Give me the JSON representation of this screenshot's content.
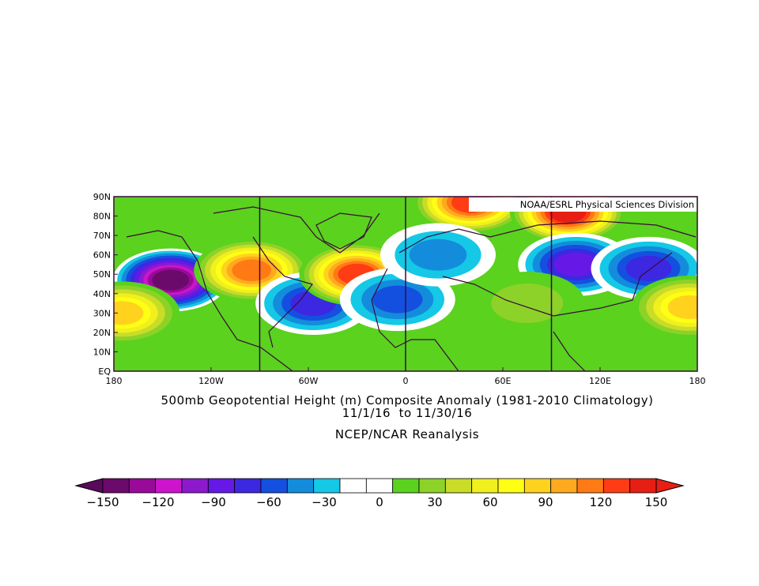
{
  "map": {
    "type": "geopotential height anomaly map",
    "projection": "cylindrical equidistant",
    "lon_range": [
      -180,
      180
    ],
    "lat_range": [
      0,
      90
    ],
    "credit": "NOAA/ESRL Physical Sciences Division",
    "lat_ticks": [
      "EQ",
      "10N",
      "20N",
      "30N",
      "40N",
      "50N",
      "60N",
      "70N",
      "80N",
      "90N"
    ],
    "lon_ticks": [
      "180",
      "120W",
      "60W",
      "0",
      "60E",
      "120E",
      "180"
    ],
    "units_m": "m"
  },
  "title": {
    "line1": "500mb Geopotential Height (m) Composite Anomaly (1981-2010 Climatology)",
    "line2": "11/1/16  to 11/30/16",
    "line3": "NCEP/NCAR Reanalysis"
  },
  "colorbar": {
    "labels": [
      "-150",
      "-120",
      "-90",
      "-60",
      "-30",
      "0",
      "30",
      "60",
      "90",
      "120",
      "150"
    ],
    "colors": [
      "#6b0a6b",
      "#990a99",
      "#cc14cc",
      "#8c1acc",
      "#6619e6",
      "#3c28e0",
      "#1450e0",
      "#148cdc",
      "#14c8e6",
      "#ffffff",
      "#ffffff",
      "#5ad21e",
      "#8cd228",
      "#c8dc28",
      "#f0f01e",
      "#ffff14",
      "#ffd21e",
      "#ffaa1e",
      "#ff7a14",
      "#ff3c14",
      "#e61e14"
    ],
    "under_color": "#5a0a5a",
    "over_color": "#e61e14"
  },
  "anomaly_centers": [
    {
      "lon": -145,
      "lat": 47,
      "value": -135
    },
    {
      "lon": -95,
      "lat": 52,
      "value": 110
    },
    {
      "lon": -57,
      "lat": 35,
      "value": -60
    },
    {
      "lon": -30,
      "lat": 50,
      "value": 125
    },
    {
      "lon": -5,
      "lat": 37,
      "value": -45
    },
    {
      "lon": 40,
      "lat": 87,
      "value": 120
    },
    {
      "lon": 100,
      "lat": 82,
      "value": 130
    },
    {
      "lon": 105,
      "lat": 55,
      "value": -80
    },
    {
      "lon": 150,
      "lat": 53,
      "value": -55
    },
    {
      "lon": -175,
      "lat": 30,
      "value": 75
    },
    {
      "lon": 175,
      "lat": 33,
      "value": 80
    },
    {
      "lon": 75,
      "lat": 35,
      "value": 20
    },
    {
      "lon": 20,
      "lat": 60,
      "value": -30
    }
  ]
}
